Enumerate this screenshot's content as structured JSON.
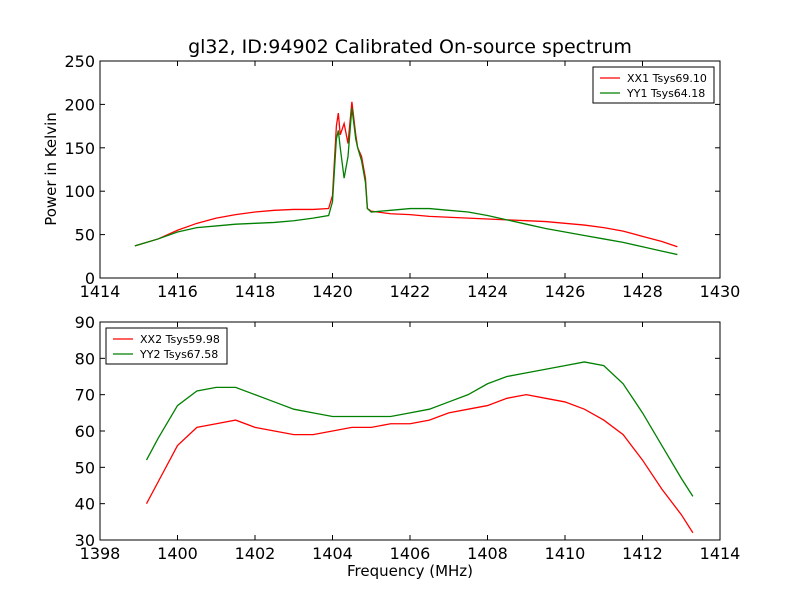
{
  "chart_data": [
    {
      "type": "line",
      "title": "gl32, ID:94902 Calibrated On-source spectrum",
      "xlabel": "",
      "ylabel": "Power in Kelvin",
      "xlim": [
        1414,
        1430
      ],
      "ylim": [
        0,
        250
      ],
      "xticks": [
        "1414",
        "1416",
        "1418",
        "1420",
        "1422",
        "1424",
        "1426",
        "1428",
        "1430"
      ],
      "yticks": [
        "0",
        "50",
        "100",
        "150",
        "200",
        "250"
      ],
      "legend_position": "top-right",
      "series": [
        {
          "name": "XX1 Tsys69.10",
          "color": "#ff0000",
          "x": [
            1414.9,
            1415.5,
            1416.0,
            1416.5,
            1417.0,
            1417.5,
            1418.0,
            1418.5,
            1419.0,
            1419.5,
            1419.9,
            1420.0,
            1420.1,
            1420.15,
            1420.2,
            1420.3,
            1420.4,
            1420.5,
            1420.6,
            1420.65,
            1420.75,
            1420.85,
            1420.9,
            1421.0,
            1421.5,
            1422.0,
            1422.5,
            1423.0,
            1423.5,
            1424.0,
            1424.5,
            1425.0,
            1425.5,
            1426.0,
            1426.5,
            1427.0,
            1427.5,
            1428.0,
            1428.5,
            1428.9
          ],
          "values": [
            37,
            45,
            55,
            63,
            69,
            73,
            76,
            78,
            79,
            79,
            80,
            95,
            175,
            190,
            165,
            178,
            155,
            203,
            165,
            150,
            140,
            115,
            80,
            77,
            74,
            73,
            71,
            70,
            69,
            68,
            67,
            66,
            65,
            63,
            61,
            58,
            54,
            48,
            42,
            36
          ]
        },
        {
          "name": "YY1 Tsys64.18",
          "color": "#008000",
          "x": [
            1414.9,
            1415.5,
            1416.0,
            1416.5,
            1417.0,
            1417.5,
            1418.0,
            1418.5,
            1419.0,
            1419.5,
            1419.9,
            1420.0,
            1420.1,
            1420.15,
            1420.2,
            1420.3,
            1420.4,
            1420.5,
            1420.6,
            1420.65,
            1420.75,
            1420.85,
            1420.9,
            1421.0,
            1421.5,
            1422.0,
            1422.5,
            1423.0,
            1423.5,
            1424.0,
            1424.5,
            1425.0,
            1425.5,
            1426.0,
            1426.5,
            1427.0,
            1427.5,
            1428.0,
            1428.5,
            1428.9
          ],
          "values": [
            37,
            45,
            53,
            58,
            60,
            62,
            63,
            64,
            66,
            69,
            72,
            88,
            160,
            170,
            150,
            115,
            140,
            196,
            160,
            150,
            135,
            110,
            80,
            76,
            78,
            80,
            80,
            78,
            76,
            72,
            67,
            62,
            57,
            53,
            49,
            45,
            41,
            36,
            31,
            27
          ]
        }
      ]
    },
    {
      "type": "line",
      "title": "",
      "xlabel": "Frequency (MHz)",
      "ylabel": "",
      "xlim": [
        1398,
        1414
      ],
      "ylim": [
        30,
        90
      ],
      "xticks": [
        "1398",
        "1400",
        "1402",
        "1404",
        "1406",
        "1408",
        "1410",
        "1412",
        "1414"
      ],
      "yticks": [
        "30",
        "40",
        "50",
        "60",
        "70",
        "80",
        "90"
      ],
      "legend_position": "top-left",
      "series": [
        {
          "name": "XX2 Tsys59.98",
          "color": "#ff0000",
          "x": [
            1399.2,
            1399.5,
            1400.0,
            1400.5,
            1401.0,
            1401.5,
            1402.0,
            1402.5,
            1403.0,
            1403.5,
            1404.0,
            1404.5,
            1405.0,
            1405.5,
            1406.0,
            1406.5,
            1407.0,
            1407.5,
            1408.0,
            1408.5,
            1409.0,
            1409.5,
            1410.0,
            1410.5,
            1411.0,
            1411.5,
            1412.0,
            1412.5,
            1413.0,
            1413.3
          ],
          "values": [
            40,
            46,
            56,
            61,
            62,
            63,
            61,
            60,
            59,
            59,
            60,
            61,
            61,
            62,
            62,
            63,
            65,
            66,
            67,
            69,
            70,
            69,
            68,
            66,
            63,
            59,
            52,
            44,
            37,
            32
          ]
        },
        {
          "name": "YY2 Tsys67.58",
          "color": "#008000",
          "x": [
            1399.2,
            1399.5,
            1400.0,
            1400.5,
            1401.0,
            1401.5,
            1402.0,
            1402.5,
            1403.0,
            1403.5,
            1404.0,
            1404.5,
            1405.0,
            1405.5,
            1406.0,
            1406.5,
            1407.0,
            1407.5,
            1408.0,
            1408.5,
            1409.0,
            1409.5,
            1410.0,
            1410.5,
            1411.0,
            1411.5,
            1412.0,
            1412.5,
            1413.0,
            1413.3
          ],
          "values": [
            52,
            58,
            67,
            71,
            72,
            72,
            70,
            68,
            66,
            65,
            64,
            64,
            64,
            64,
            65,
            66,
            68,
            70,
            73,
            75,
            76,
            77,
            78,
            79,
            78,
            73,
            65,
            56,
            47,
            42
          ]
        }
      ]
    }
  ]
}
